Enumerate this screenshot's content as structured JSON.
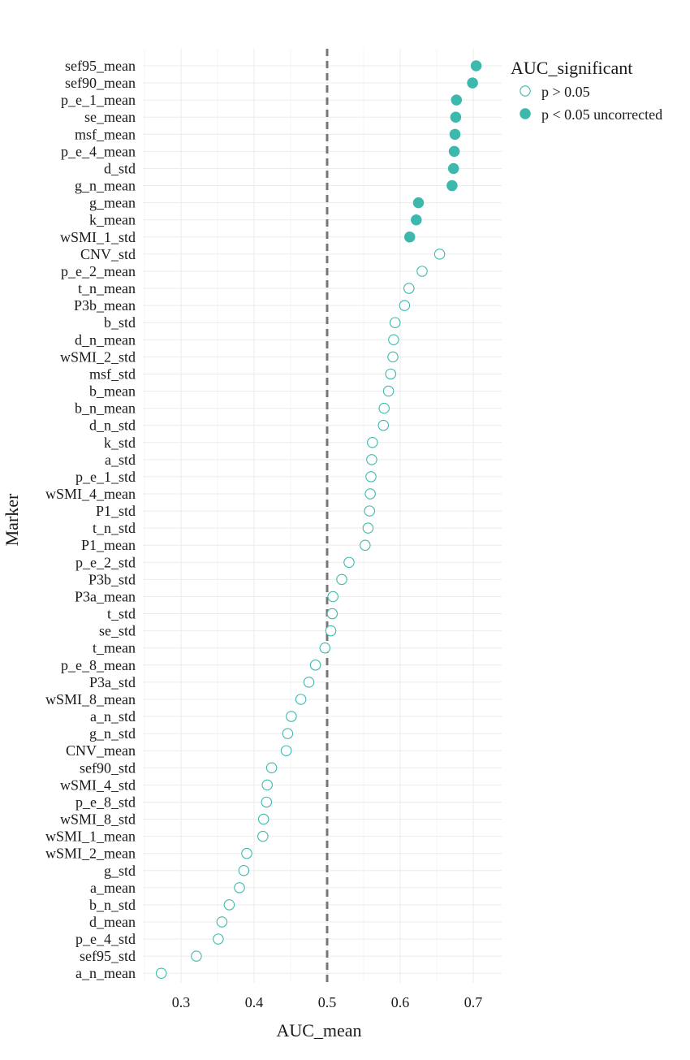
{
  "chart_data": {
    "type": "scatter",
    "xlabel": "AUC_mean",
    "ylabel": "Marker",
    "xlim": [
      0.245,
      0.74
    ],
    "x_ticks": [
      0.3,
      0.4,
      0.5,
      0.6,
      0.7
    ],
    "x_tick_labels": [
      "0.3",
      "0.4",
      "0.5",
      "0.6",
      "0.7"
    ],
    "reference_line": {
      "x": 0.5,
      "style": "dashed",
      "color": "#777777"
    },
    "grid": true,
    "legend": {
      "title": "AUC_significant",
      "position": "right-top",
      "entries": [
        {
          "label": "p > 0.05",
          "marker": "open-circle"
        },
        {
          "label": "p < 0.05 uncorrected",
          "marker": "filled-circle"
        }
      ]
    },
    "colors": {
      "point": "#3db8ad",
      "grid": "#ebebeb"
    },
    "points": [
      {
        "marker": "sef95_mean",
        "auc": 0.704,
        "significant": true
      },
      {
        "marker": "sef90_mean",
        "auc": 0.699,
        "significant": true
      },
      {
        "marker": "p_e_1_mean",
        "auc": 0.677,
        "significant": true
      },
      {
        "marker": "se_mean",
        "auc": 0.676,
        "significant": true
      },
      {
        "marker": "msf_mean",
        "auc": 0.675,
        "significant": true
      },
      {
        "marker": "p_e_4_mean",
        "auc": 0.674,
        "significant": true
      },
      {
        "marker": "d_std",
        "auc": 0.673,
        "significant": true
      },
      {
        "marker": "g_n_mean",
        "auc": 0.671,
        "significant": true
      },
      {
        "marker": "g_mean",
        "auc": 0.625,
        "significant": true
      },
      {
        "marker": "k_mean",
        "auc": 0.622,
        "significant": true
      },
      {
        "marker": "wSMI_1_std",
        "auc": 0.613,
        "significant": true
      },
      {
        "marker": "CNV_std",
        "auc": 0.654,
        "significant": false
      },
      {
        "marker": "p_e_2_mean",
        "auc": 0.63,
        "significant": false
      },
      {
        "marker": "t_n_mean",
        "auc": 0.612,
        "significant": false
      },
      {
        "marker": "P3b_mean",
        "auc": 0.606,
        "significant": false
      },
      {
        "marker": "b_std",
        "auc": 0.593,
        "significant": false
      },
      {
        "marker": "d_n_mean",
        "auc": 0.591,
        "significant": false
      },
      {
        "marker": "wSMI_2_std",
        "auc": 0.59,
        "significant": false
      },
      {
        "marker": "msf_std",
        "auc": 0.587,
        "significant": false
      },
      {
        "marker": "b_mean",
        "auc": 0.584,
        "significant": false
      },
      {
        "marker": "b_n_mean",
        "auc": 0.578,
        "significant": false
      },
      {
        "marker": "d_n_std",
        "auc": 0.577,
        "significant": false
      },
      {
        "marker": "k_std",
        "auc": 0.562,
        "significant": false
      },
      {
        "marker": "a_std",
        "auc": 0.561,
        "significant": false
      },
      {
        "marker": "p_e_1_std",
        "auc": 0.56,
        "significant": false
      },
      {
        "marker": "wSMI_4_mean",
        "auc": 0.559,
        "significant": false
      },
      {
        "marker": "P1_std",
        "auc": 0.558,
        "significant": false
      },
      {
        "marker": "t_n_std",
        "auc": 0.556,
        "significant": false
      },
      {
        "marker": "P1_mean",
        "auc": 0.552,
        "significant": false
      },
      {
        "marker": "p_e_2_std",
        "auc": 0.53,
        "significant": false
      },
      {
        "marker": "P3b_std",
        "auc": 0.52,
        "significant": false
      },
      {
        "marker": "P3a_mean",
        "auc": 0.508,
        "significant": false
      },
      {
        "marker": "t_std",
        "auc": 0.507,
        "significant": false
      },
      {
        "marker": "se_std",
        "auc": 0.505,
        "significant": false
      },
      {
        "marker": "t_mean",
        "auc": 0.497,
        "significant": false
      },
      {
        "marker": "p_e_8_mean",
        "auc": 0.484,
        "significant": false
      },
      {
        "marker": "P3a_std",
        "auc": 0.475,
        "significant": false
      },
      {
        "marker": "wSMI_8_mean",
        "auc": 0.464,
        "significant": false
      },
      {
        "marker": "a_n_std",
        "auc": 0.451,
        "significant": false
      },
      {
        "marker": "g_n_std",
        "auc": 0.446,
        "significant": false
      },
      {
        "marker": "CNV_mean",
        "auc": 0.444,
        "significant": false
      },
      {
        "marker": "sef90_std",
        "auc": 0.424,
        "significant": false
      },
      {
        "marker": "wSMI_4_std",
        "auc": 0.418,
        "significant": false
      },
      {
        "marker": "p_e_8_std",
        "auc": 0.417,
        "significant": false
      },
      {
        "marker": "wSMI_8_std",
        "auc": 0.413,
        "significant": false
      },
      {
        "marker": "wSMI_1_mean",
        "auc": 0.412,
        "significant": false
      },
      {
        "marker": "wSMI_2_mean",
        "auc": 0.39,
        "significant": false
      },
      {
        "marker": "g_std",
        "auc": 0.386,
        "significant": false
      },
      {
        "marker": "a_mean",
        "auc": 0.38,
        "significant": false
      },
      {
        "marker": "b_n_std",
        "auc": 0.366,
        "significant": false
      },
      {
        "marker": "d_mean",
        "auc": 0.356,
        "significant": false
      },
      {
        "marker": "p_e_4_std",
        "auc": 0.351,
        "significant": false
      },
      {
        "marker": "sef95_std",
        "auc": 0.321,
        "significant": false
      },
      {
        "marker": "a_n_mean",
        "auc": 0.273,
        "significant": false
      }
    ]
  }
}
